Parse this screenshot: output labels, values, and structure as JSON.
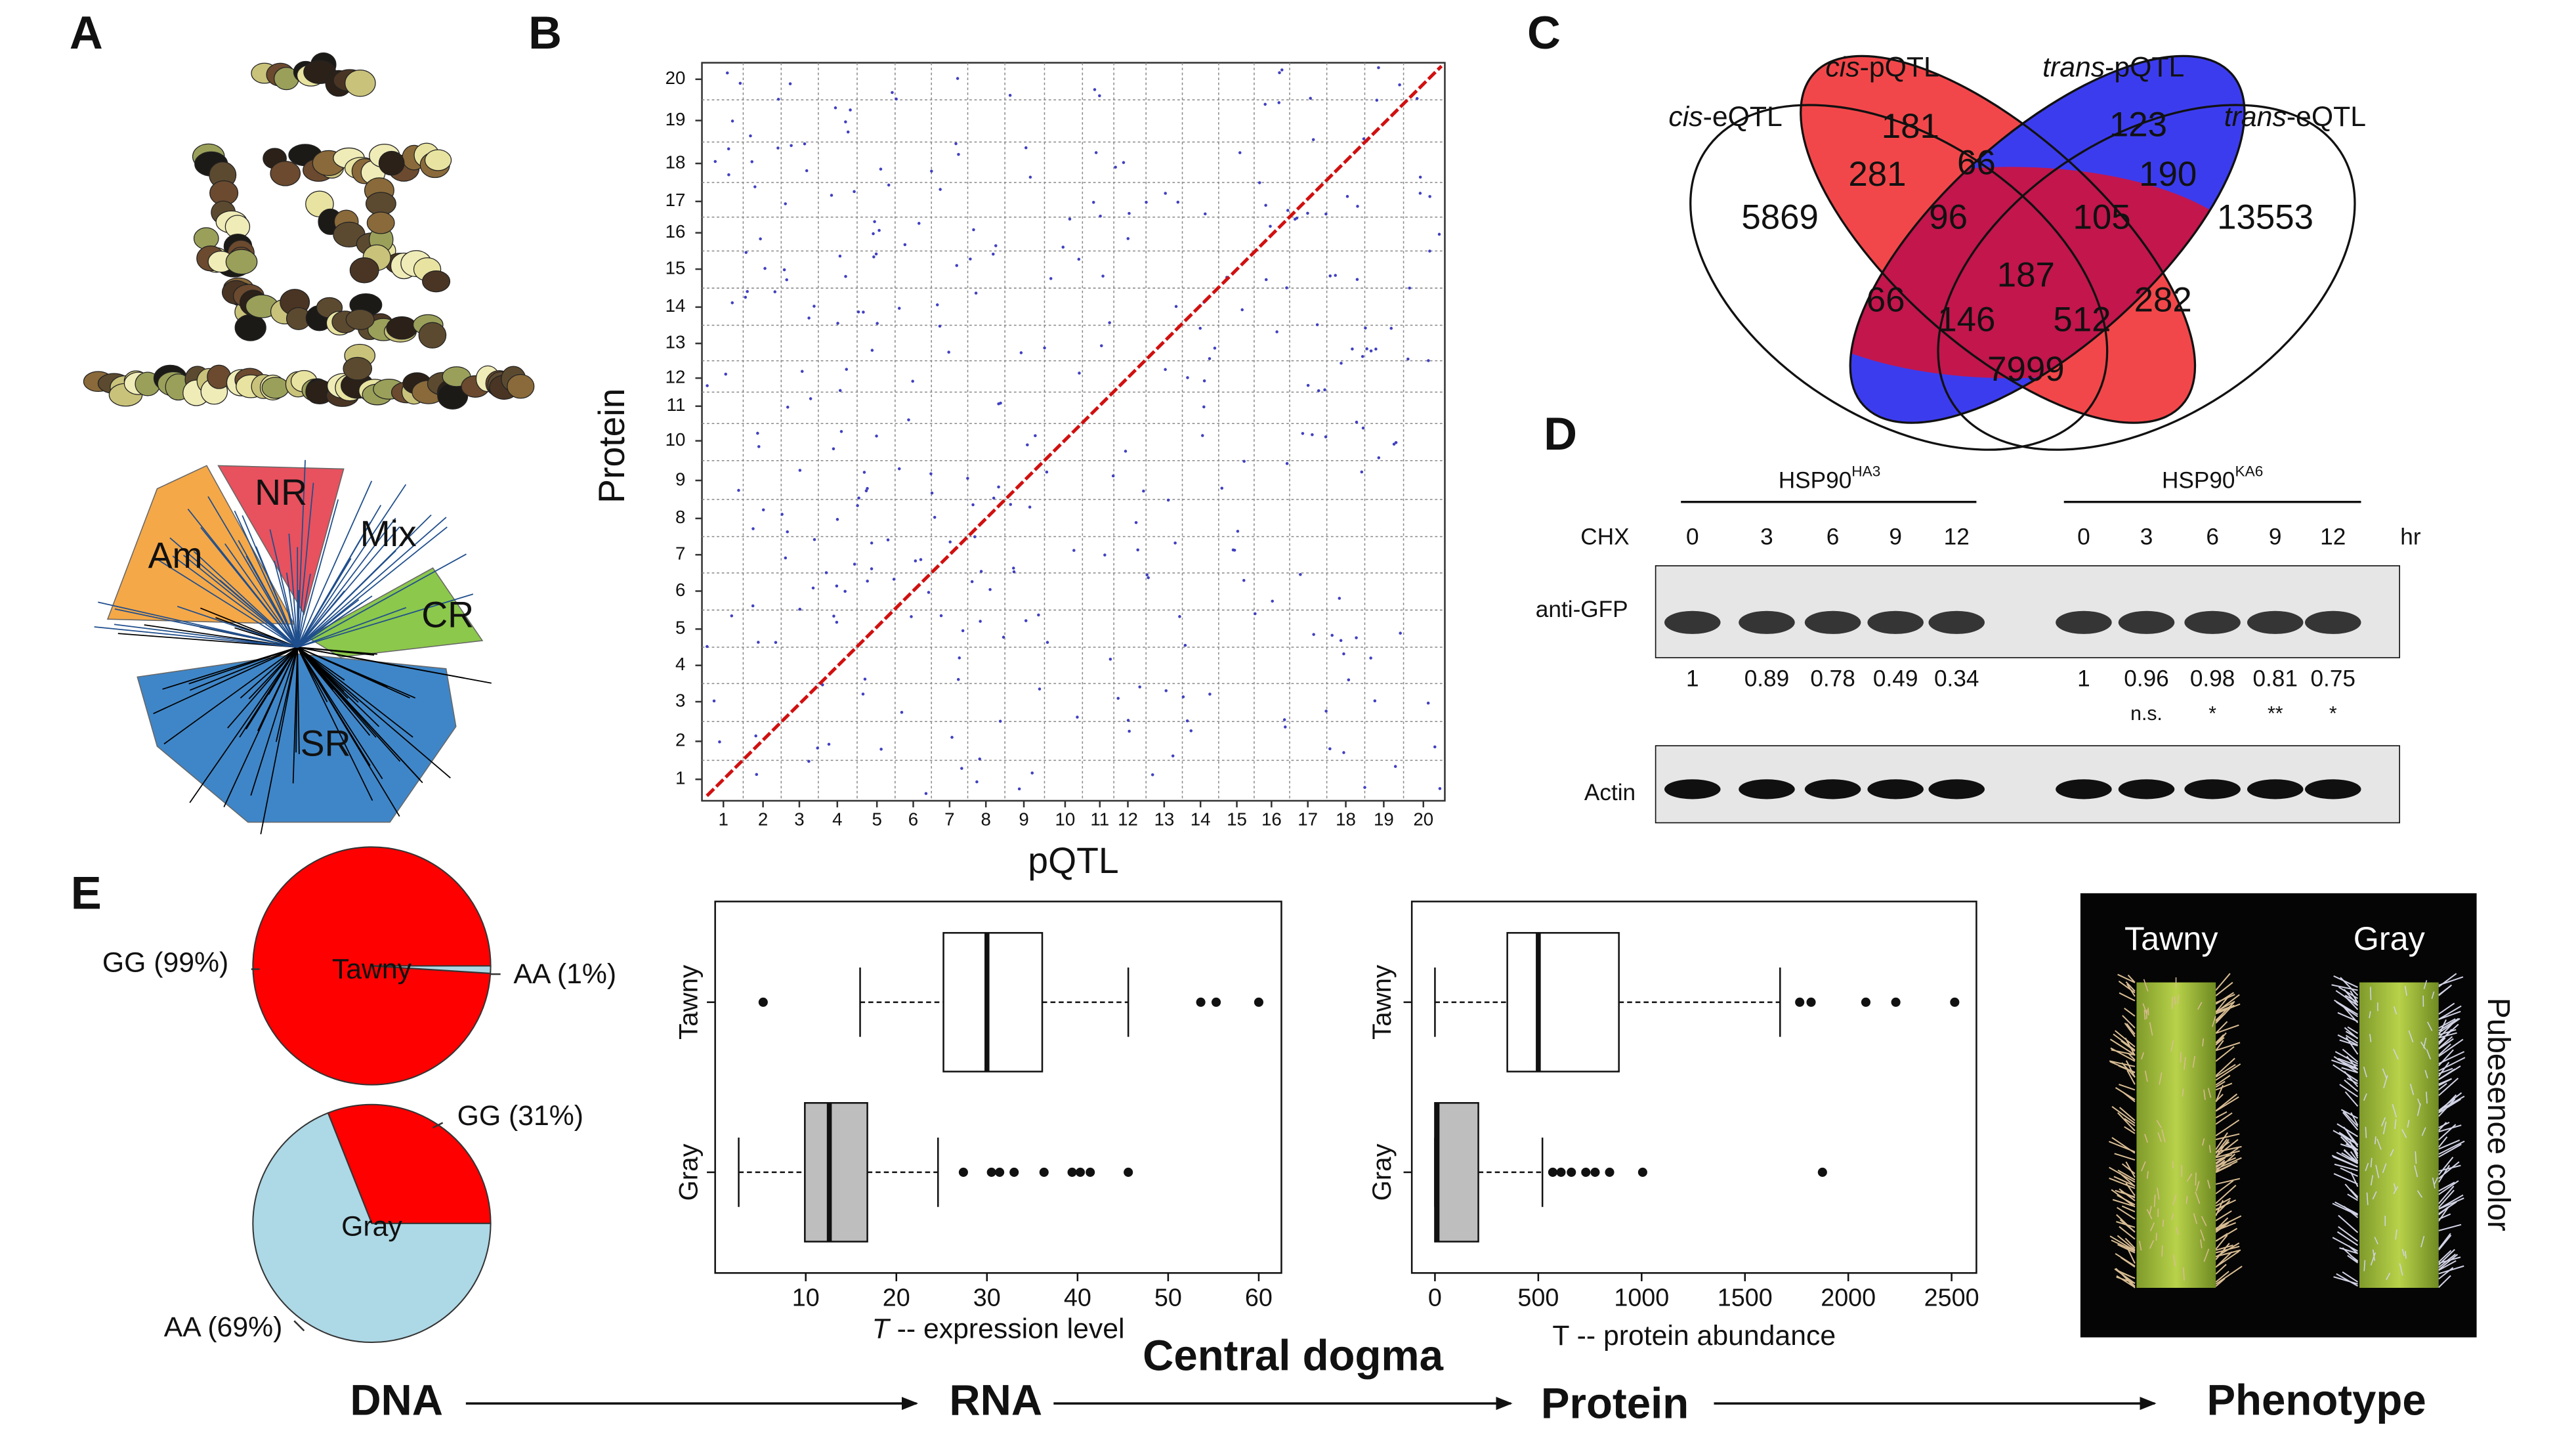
{
  "panel_labels": [
    "A",
    "B",
    "C",
    "D",
    "E"
  ],
  "panel_a": {
    "clusters": [
      "Am",
      "NR",
      "Mix",
      "CR",
      "SR"
    ]
  },
  "panel_b": {
    "x_label": "pQTL",
    "y_label": "Protein",
    "x_ticks": [
      1,
      2,
      3,
      4,
      5,
      6,
      7,
      8,
      9,
      10,
      11,
      12,
      13,
      14,
      15,
      16,
      17,
      18,
      19,
      20
    ],
    "y_ticks": [
      1,
      2,
      3,
      4,
      5,
      6,
      7,
      8,
      9,
      10,
      11,
      12,
      13,
      14,
      15,
      16,
      17,
      18,
      19,
      20
    ]
  },
  "panel_c": {
    "sets": [
      {
        "italic": "cis",
        "rest": "-eQTL"
      },
      {
        "italic": "cis",
        "rest": "-pQTL"
      },
      {
        "italic": "trans",
        "rest": "-pQTL"
      },
      {
        "italic": "trans",
        "rest": "-eQTL"
      }
    ],
    "counts": [
      181,
      281,
      66,
      123,
      190,
      5869,
      96,
      105,
      13553,
      187,
      66,
      146,
      512,
      282,
      7999
    ]
  },
  "panel_d": {
    "treatment": "CHX",
    "unit": "hr",
    "rows": [
      "anti-GFP",
      "Actin"
    ],
    "groups": [
      {
        "name": "HSP90",
        "sup": "HA3",
        "times": [
          0,
          3,
          6,
          9,
          12
        ],
        "ratios": [
          1,
          0.89,
          0.78,
          0.49,
          0.34
        ]
      },
      {
        "name": "HSP90",
        "sup": "KA6",
        "times": [
          0,
          3,
          6,
          9,
          12
        ],
        "ratios": [
          1,
          0.96,
          0.98,
          0.81,
          0.75
        ],
        "significance": [
          "n.s.",
          "*",
          "**",
          "*"
        ]
      }
    ]
  },
  "chart_data": [
    {
      "type": "pie",
      "center_label": "Tawny",
      "categories": [
        "GG (99%)",
        "AA (1%)"
      ],
      "values": [
        99,
        1
      ],
      "colors": [
        "#ff0000",
        "#add8e6"
      ]
    },
    {
      "type": "pie",
      "center_label": "Gray",
      "categories": [
        "GG (31%)",
        "AA (69%)"
      ],
      "values": [
        31,
        69
      ],
      "colors": [
        "#ff0000",
        "#add8e6"
      ]
    },
    {
      "type": "box",
      "x_label": {
        "italic": "T",
        "rest": " -- expression level"
      },
      "categories": [
        "Tawny",
        "Gray"
      ],
      "xlim": [
        0,
        62.5
      ],
      "xticks": [
        10,
        20,
        30,
        40,
        50,
        60
      ],
      "boxes": [
        {
          "min": 16,
          "q1": 25.2,
          "median": 30,
          "q3": 36.1,
          "max": 45.6,
          "outliers": [
            5.3,
            53.6,
            55.3,
            60
          ],
          "color": "#ffffff"
        },
        {
          "min": 2.6,
          "q1": 9.9,
          "median": 12.6,
          "q3": 16.8,
          "max": 24.6,
          "outliers": [
            27.4,
            30.5,
            31.4,
            33,
            36.3,
            39.4,
            40.3,
            41.4,
            45.6
          ],
          "color": "#bebebe"
        }
      ]
    },
    {
      "type": "box",
      "x_label": "T -- protein abundance",
      "categories": [
        "Tawny",
        "Gray"
      ],
      "xlim": [
        -112,
        2620
      ],
      "xticks": [
        0,
        500,
        1000,
        1500,
        2000,
        2500
      ],
      "boxes": [
        {
          "min": 0,
          "q1": 350,
          "median": 500,
          "q3": 890,
          "max": 1670,
          "outliers": [
            1765,
            1820,
            2085,
            2230,
            2515
          ],
          "color": "#ffffff"
        },
        {
          "min": 0,
          "q1": 0,
          "median": 10,
          "q3": 210,
          "max": 520,
          "outliers": [
            570,
            610,
            660,
            730,
            775,
            845,
            1005,
            1875
          ],
          "color": "#bebebe"
        }
      ]
    }
  ],
  "phenotype": {
    "labels": [
      "Tawny",
      "Gray"
    ],
    "trait": "Pubesence color"
  },
  "flow": {
    "steps": [
      "DNA",
      "RNA",
      "Protein",
      "Phenotype"
    ],
    "title": "Central dogma"
  }
}
